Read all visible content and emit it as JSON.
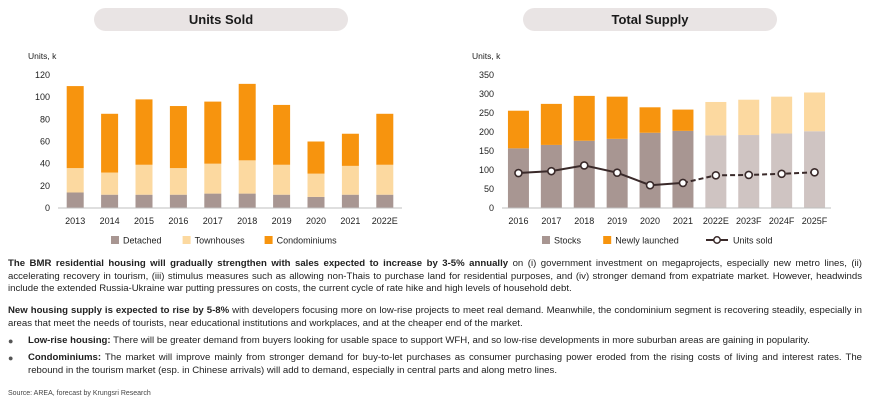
{
  "units_chart": {
    "title": "Units Sold",
    "chart_data": {
      "type": "bar",
      "stacked": true,
      "title": "Units Sold",
      "ylabel": "Units, k",
      "ylim": [
        0,
        120
      ],
      "yticks": [
        "0",
        "20",
        "40",
        "60",
        "80",
        "100",
        "120"
      ],
      "categories": [
        "2013",
        "2014",
        "2015",
        "2016",
        "2017",
        "2018",
        "2019",
        "2020",
        "2021",
        "2022E"
      ],
      "series": [
        {
          "name": "Detached",
          "color": "#a89692",
          "values": [
            14,
            12,
            12,
            12,
            13,
            13,
            12,
            10,
            12,
            12
          ]
        },
        {
          "name": "Townhouses",
          "color": "#fcd9a0",
          "values": [
            22,
            20,
            27,
            24,
            27,
            30,
            27,
            21,
            26,
            27
          ]
        },
        {
          "name": "Condominiums",
          "color": "#f7940e",
          "values": [
            74,
            53,
            59,
            56,
            56,
            69,
            54,
            29,
            29,
            46
          ]
        }
      ],
      "legend_position": "bottom",
      "grid": false
    }
  },
  "supply_chart": {
    "title": "Total Supply",
    "chart_data": {
      "type": "bar",
      "stacked": true,
      "title": "Total Supply",
      "ylabel": "Units, k",
      "ylim": [
        0,
        350
      ],
      "yticks": [
        "0",
        "50",
        "100",
        "150",
        "200",
        "250",
        "300",
        "350"
      ],
      "categories": [
        "2016",
        "2017",
        "2018",
        "2019",
        "2020",
        "2021",
        "2022E",
        "2023F",
        "2024F",
        "2025F"
      ],
      "series": [
        {
          "name": "Stocks",
          "color": "#a89692",
          "projected_color": "#cfc4c2",
          "values": [
            157,
            166,
            177,
            182,
            198,
            203,
            191,
            192,
            196,
            202
          ]
        },
        {
          "name": "Newly launched",
          "color": "#f7940e",
          "projected_color": "#fcd9a0",
          "values": [
            99,
            108,
            118,
            111,
            67,
            56,
            88,
            93,
            97,
            102
          ]
        },
        {
          "name": "Units sold",
          "type": "line",
          "color": "#3a2a2a",
          "values": [
            92,
            97,
            112,
            93,
            60,
            66,
            86,
            87,
            90,
            94
          ]
        }
      ],
      "projected_from": "2022E",
      "legend_position": "bottom",
      "grid": false
    }
  },
  "text": {
    "p1_bold": "The BMR residential housing will gradually strengthen with sales expected to increase by 3-5% annually",
    "p1_rest": " on (i) government investment on megaprojects, especially new metro lines, (ii) accelerating recovery in tourism, (iii) stimulus measures such as allowing non-Thais to purchase land for residential purposes, and (iv) stronger demand from expatriate market. However, headwinds include the extended Russia-Ukraine war putting pressures on costs, the current cycle of rate hike and high levels of household debt.",
    "p2_bold": "New housing supply is expected to rise by 5-8%",
    "p2_rest": " with developers focusing more on low-rise projects to meet real demand. Meanwhile, the condominium segment is recovering steadily, especially in areas that meet the needs of tourists, near educational institutions and workplaces, and at the cheaper end of the market.",
    "b1_bold": "Low-rise housing:",
    "b1_rest": " There will be greater demand from buyers looking for usable space to support WFH, and so low-rise developments in more suburban areas are gaining in popularity.",
    "b2_bold": "Condominiums:",
    "b2_rest": " The market will improve mainly from stronger demand for buy-to-let purchases as consumer purchasing power eroded from the rising costs of living and interest rates. The rebound in the tourism market (esp. in Chinese arrivals) will add to demand, especially in central parts and along metro lines.",
    "bullet_glyph": "●",
    "source": "Source: AREA, forecast by Krungsri Research"
  }
}
